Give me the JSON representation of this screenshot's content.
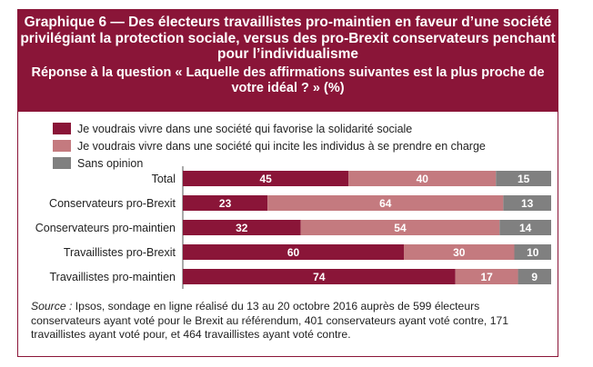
{
  "title": "Graphique 6 — Des électeurs travaillistes pro-maintien en faveur d’une société privilégiant la protection sociale, versus des pro-Brexit conservateurs penchant pour l’individualisme",
  "subtitle": "Réponse à la question « Laquelle des affirmations suivantes est la plus proche de votre idéal ? » (%)",
  "source_label": "Source :",
  "source_text": "Ipsos, sondage en ligne réalisé du 13 au 20 octobre 2016 auprès de 599 électeurs conservateurs ayant voté pour le Brexit au référendum, 401 conservateurs ayant voté contre, 171 travaillistes ayant voté pour, et 464 travaillistes ayant voté contre.",
  "chart_data": {
    "type": "bar",
    "orientation": "horizontal",
    "stacked": true,
    "categories": [
      "Total",
      "Conservateurs pro-Brexit",
      "Conservateurs pro-maintien",
      "Travaillistes pro-Brexit",
      "Travaillistes pro-maintien"
    ],
    "series": [
      {
        "name": "Je voudrais vivre dans une société qui favorise la solidarité sociale",
        "color": "#8a1538",
        "values": [
          45,
          23,
          32,
          60,
          74
        ]
      },
      {
        "name": "Je voudrais vivre dans une société qui incite les individus à se prendre en charge",
        "color": "#c47a7f",
        "values": [
          40,
          64,
          54,
          30,
          17
        ]
      },
      {
        "name": "Sans opinion",
        "color": "#808080",
        "values": [
          15,
          13,
          14,
          10,
          9
        ]
      }
    ],
    "xlim": [
      0,
      100
    ],
    "legend_position": "top-left",
    "grid": false
  }
}
